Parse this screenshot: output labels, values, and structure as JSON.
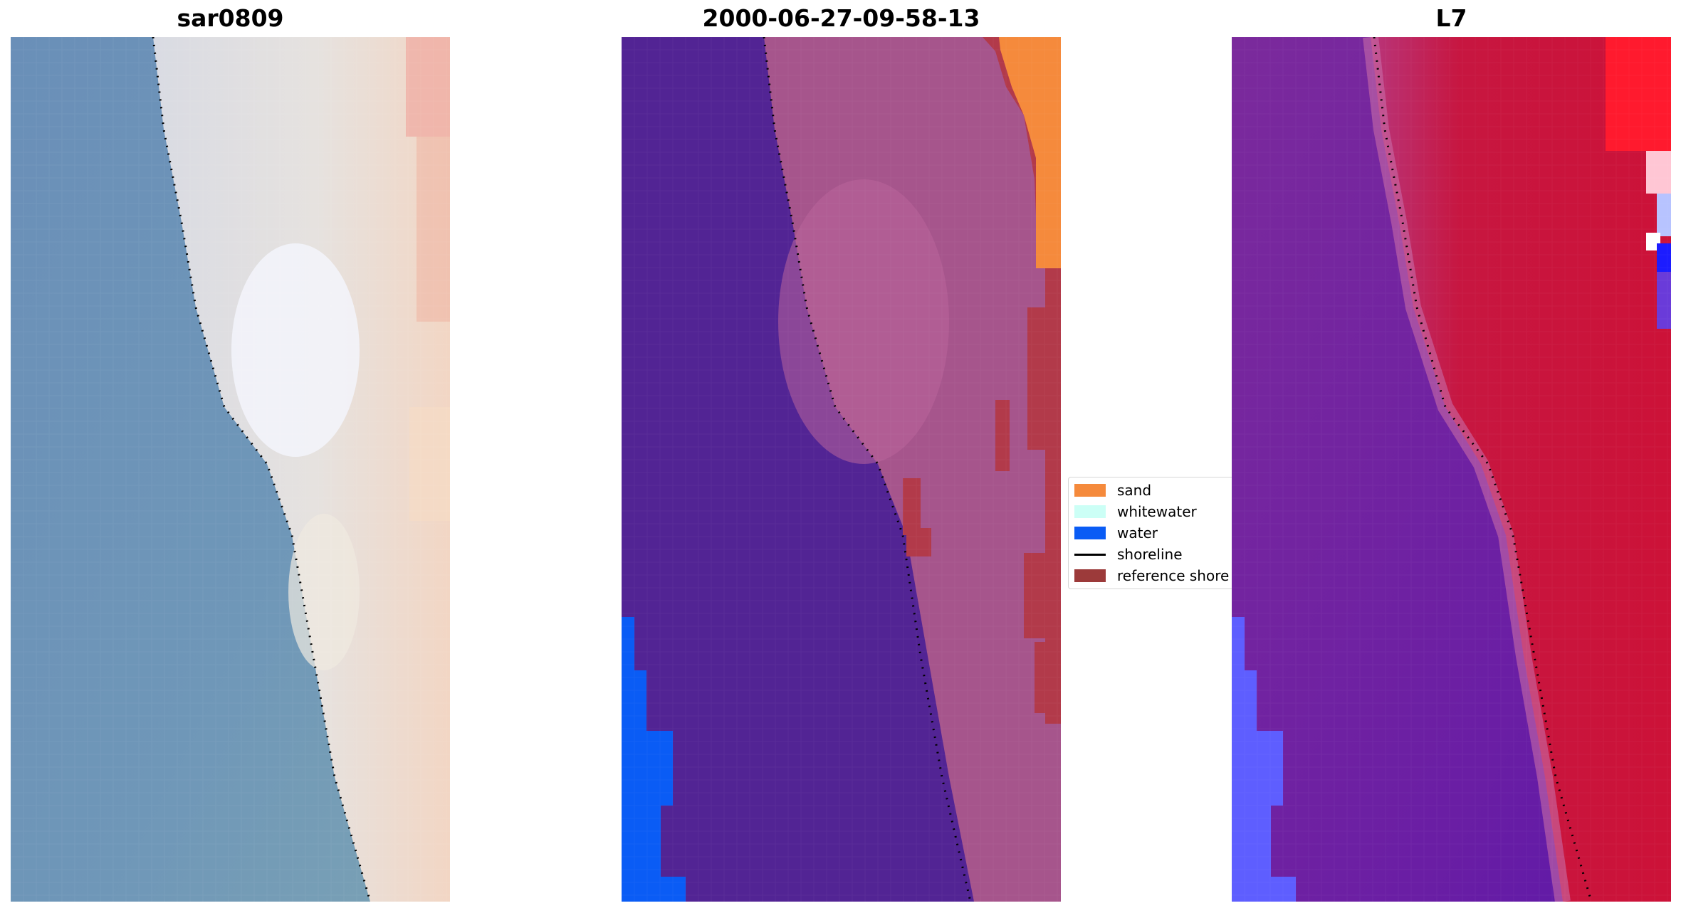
{
  "panels": [
    {
      "title": "sar0809"
    },
    {
      "title": "2000-06-27-09-58-13"
    },
    {
      "title": "L7"
    }
  ],
  "legend": {
    "items": [
      {
        "label": "sand",
        "color": "#f58a3c",
        "kind": "patch"
      },
      {
        "label": "whitewater",
        "color": "#ccfff6",
        "kind": "patch"
      },
      {
        "label": "water",
        "color": "#0a5cf5",
        "kind": "patch"
      },
      {
        "label": "shoreline",
        "color": "#000000",
        "kind": "line"
      },
      {
        "label": "reference shore",
        "color": "#9c3a3a",
        "kind": "patch"
      }
    ]
  },
  "colors": {
    "rgb_water": "#6b93b8",
    "rgb_beach": "#dcdce2",
    "class_water_bg": "#522494",
    "class_land": "#a6558c",
    "class_sand": "#f58a3c",
    "class_reference": "#b23a4a",
    "class_water": "#0a5cf5",
    "index_water": "#7b2a9c",
    "index_land": "#c2143a",
    "index_bright": "#5e5eff"
  }
}
